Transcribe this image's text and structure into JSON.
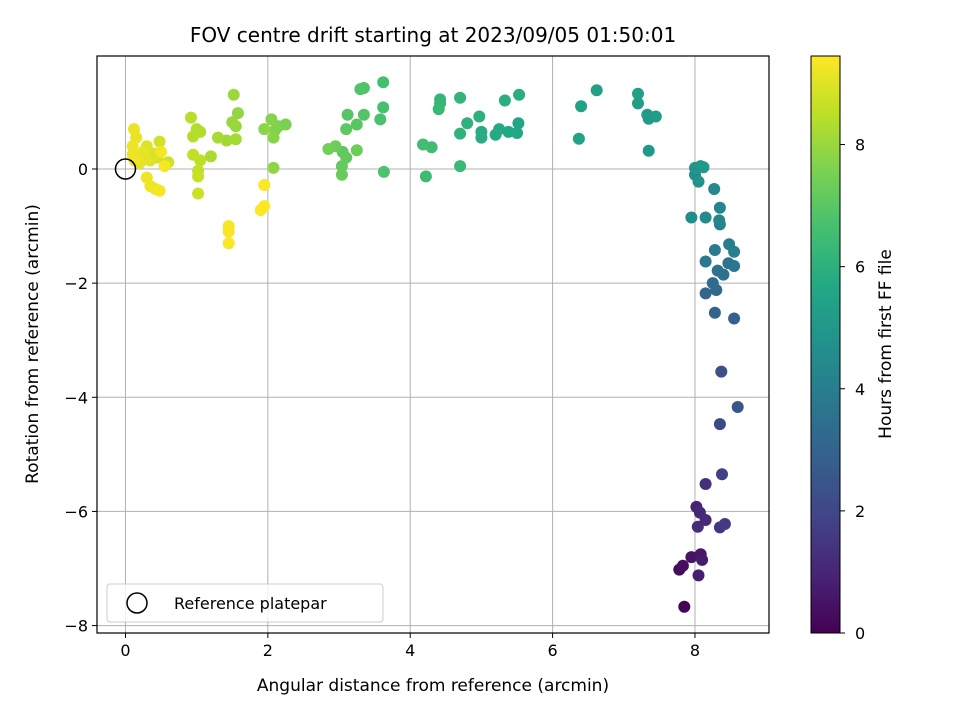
{
  "chart_data": {
    "type": "scatter",
    "title": "FOV centre drift starting at 2023/09/05 01:50:01",
    "xlabel": "Angular distance from reference (arcmin)",
    "ylabel": "Rotation from reference (arcmin)",
    "xlim": [
      -0.4,
      9.04
    ],
    "ylim": [
      -8.13,
      1.98
    ],
    "xticks": [
      0,
      2,
      4,
      6,
      8
    ],
    "xtick_labels": [
      "0",
      "2",
      "4",
      "6",
      "8"
    ],
    "yticks": [
      -8,
      -6,
      -4,
      -2,
      0
    ],
    "ytick_labels": [
      "−8",
      "−6",
      "−4",
      "−2",
      "0"
    ],
    "grid": true,
    "colorbar": {
      "label": "Hours from first FF file",
      "colormap": "viridis",
      "min": 0,
      "max": 9.45,
      "ticks": [
        0,
        2,
        4,
        6,
        8
      ],
      "tick_labels": [
        "0",
        "2",
        "4",
        "6",
        "8"
      ]
    },
    "legend": {
      "placement": "lower-left",
      "entries": [
        {
          "label": "Reference platepar",
          "marker": "open-circle"
        }
      ]
    },
    "reference_point": {
      "x": 0,
      "y": 0
    },
    "series": [
      {
        "points": [
          [
            7.85,
            -7.67,
            0.1
          ],
          [
            7.78,
            -7.02,
            0.3
          ],
          [
            7.83,
            -6.95,
            0.4
          ],
          [
            7.95,
            -6.8,
            0.5
          ],
          [
            8.08,
            -6.75,
            0.6
          ],
          [
            8.1,
            -6.85,
            0.7
          ],
          [
            8.05,
            -7.12,
            0.8
          ],
          [
            8.02,
            -5.92,
            0.9
          ],
          [
            8.07,
            -6.02,
            1.0
          ],
          [
            8.15,
            -6.15,
            1.1
          ],
          [
            8.04,
            -6.27,
            1.2
          ],
          [
            8.15,
            -5.52,
            1.3
          ],
          [
            8.35,
            -6.28,
            1.5
          ],
          [
            8.42,
            -6.22,
            1.6
          ],
          [
            8.38,
            -5.35,
            1.8
          ],
          [
            8.35,
            -4.47,
            2.1
          ],
          [
            8.37,
            -3.55,
            2.3
          ],
          [
            8.6,
            -4.17,
            2.6
          ],
          [
            8.55,
            -2.62,
            2.9
          ],
          [
            8.28,
            -2.52,
            3.0
          ],
          [
            8.15,
            -2.18,
            3.1
          ],
          [
            8.3,
            -2.12,
            3.2
          ],
          [
            8.25,
            -2.0,
            3.3
          ],
          [
            8.4,
            -1.85,
            3.4
          ],
          [
            8.32,
            -1.78,
            3.5
          ],
          [
            8.47,
            -1.65,
            3.6
          ],
          [
            8.55,
            -1.7,
            3.7
          ],
          [
            8.15,
            -1.62,
            3.8
          ],
          [
            8.28,
            -1.42,
            3.9
          ],
          [
            8.48,
            -1.32,
            4.0
          ],
          [
            8.55,
            -1.45,
            4.1
          ],
          [
            8.35,
            -0.97,
            4.2
          ],
          [
            8.34,
            -0.9,
            4.25
          ],
          [
            8.35,
            -0.68,
            4.3
          ],
          [
            8.27,
            -0.35,
            4.4
          ],
          [
            8.15,
            -0.85,
            4.5
          ],
          [
            7.95,
            -0.85,
            4.6
          ],
          [
            8.0,
            -0.1,
            4.7
          ],
          [
            8.05,
            -0.22,
            4.8
          ],
          [
            8.0,
            0.02,
            4.9
          ],
          [
            8.08,
            0.05,
            4.95
          ],
          [
            8.12,
            0.03,
            5.0
          ],
          [
            7.35,
            0.32,
            5.05
          ],
          [
            7.35,
            0.88,
            5.1
          ],
          [
            7.33,
            0.95,
            5.15
          ],
          [
            7.45,
            0.92,
            5.2
          ],
          [
            7.2,
            1.15,
            5.25
          ],
          [
            7.2,
            1.32,
            5.3
          ],
          [
            6.62,
            1.38,
            5.35
          ],
          [
            6.4,
            1.1,
            5.4
          ],
          [
            6.37,
            0.53,
            5.45
          ],
          [
            5.52,
            0.8,
            5.55
          ],
          [
            5.5,
            0.63,
            5.6
          ],
          [
            5.38,
            0.65,
            5.65
          ],
          [
            5.25,
            0.7,
            5.7
          ],
          [
            5.2,
            0.6,
            5.75
          ],
          [
            5.0,
            0.65,
            5.8
          ],
          [
            5.0,
            0.55,
            5.85
          ],
          [
            5.53,
            1.3,
            5.9
          ],
          [
            5.33,
            1.2,
            5.95
          ],
          [
            4.97,
            0.92,
            6.0
          ],
          [
            4.8,
            0.8,
            6.05
          ],
          [
            4.7,
            0.62,
            6.1
          ],
          [
            4.7,
            1.25,
            6.15
          ],
          [
            4.42,
            1.22,
            6.2
          ],
          [
            4.42,
            1.15,
            6.25
          ],
          [
            4.4,
            1.05,
            6.3
          ],
          [
            4.7,
            0.05,
            6.35
          ],
          [
            4.22,
            -0.13,
            6.45
          ],
          [
            4.3,
            0.38,
            6.5
          ],
          [
            4.18,
            0.43,
            6.55
          ],
          [
            3.62,
            1.52,
            6.6
          ],
          [
            3.62,
            1.08,
            6.65
          ],
          [
            3.58,
            0.87,
            6.7
          ],
          [
            3.63,
            -0.05,
            6.75
          ],
          [
            3.35,
            1.42,
            6.8
          ],
          [
            3.3,
            1.4,
            6.85
          ],
          [
            3.35,
            0.95,
            6.9
          ],
          [
            3.12,
            0.95,
            6.95
          ],
          [
            3.25,
            0.78,
            7.0
          ],
          [
            3.1,
            0.7,
            7.05
          ],
          [
            3.05,
            0.3,
            7.1
          ],
          [
            3.1,
            0.2,
            7.15
          ],
          [
            3.04,
            0.05,
            7.2
          ],
          [
            3.04,
            -0.1,
            7.25
          ],
          [
            3.25,
            0.33,
            7.3
          ],
          [
            2.95,
            0.4,
            7.35
          ],
          [
            2.85,
            0.35,
            7.4
          ],
          [
            2.25,
            0.78,
            7.55
          ],
          [
            2.15,
            0.75,
            7.6
          ],
          [
            2.1,
            0.68,
            7.65
          ],
          [
            2.05,
            0.87,
            7.7
          ],
          [
            2.08,
            0.55,
            7.75
          ],
          [
            1.95,
            0.7,
            7.8
          ],
          [
            2.08,
            0.02,
            7.85
          ],
          [
            1.58,
            0.98,
            7.9
          ],
          [
            1.5,
            0.82,
            7.95
          ],
          [
            1.55,
            0.75,
            8.0
          ],
          [
            1.52,
            1.3,
            8.05
          ],
          [
            1.42,
            0.5,
            8.1
          ],
          [
            1.55,
            0.52,
            8.15
          ],
          [
            1.3,
            0.55,
            8.2
          ],
          [
            1.2,
            0.22,
            8.25
          ],
          [
            1.05,
            0.65,
            8.3
          ],
          [
            1.0,
            0.7,
            8.35
          ],
          [
            0.95,
            0.57,
            8.4
          ],
          [
            0.92,
            0.9,
            8.45
          ],
          [
            1.05,
            0.15,
            8.5
          ],
          [
            0.95,
            0.25,
            8.55
          ],
          [
            1.02,
            -0.03,
            8.6
          ],
          [
            1.02,
            -0.13,
            8.65
          ],
          [
            1.02,
            -0.43,
            8.7
          ],
          [
            0.6,
            0.12,
            8.75
          ],
          [
            0.48,
            0.48,
            8.8
          ],
          [
            0.45,
            0.2,
            8.85
          ],
          [
            0.4,
            0.27,
            8.9
          ],
          [
            0.35,
            0.15,
            8.95
          ],
          [
            0.3,
            0.4,
            9.0
          ],
          [
            0.28,
            0.18,
            9.05
          ],
          [
            0.25,
            0.3,
            9.1
          ],
          [
            0.2,
            0.1,
            9.12
          ],
          [
            0.15,
            0.55,
            9.14
          ],
          [
            0.12,
            0.7,
            9.16
          ],
          [
            0.1,
            0.4,
            9.18
          ],
          [
            0.1,
            0.25,
            9.2
          ],
          [
            0.13,
            0.15,
            9.22
          ],
          [
            0.3,
            -0.15,
            9.24
          ],
          [
            0.35,
            -0.3,
            9.26
          ],
          [
            0.42,
            -0.35,
            9.28
          ],
          [
            0.48,
            -0.38,
            9.3
          ],
          [
            0.5,
            0.3,
            9.32
          ],
          [
            0.55,
            0.05,
            9.34
          ],
          [
            1.45,
            -1.0,
            9.36
          ],
          [
            1.45,
            -1.1,
            9.38
          ],
          [
            1.45,
            -1.3,
            9.4
          ],
          [
            1.95,
            -0.28,
            9.42
          ],
          [
            1.95,
            -0.65,
            9.43
          ],
          [
            1.9,
            -0.72,
            9.44
          ]
        ]
      }
    ]
  }
}
